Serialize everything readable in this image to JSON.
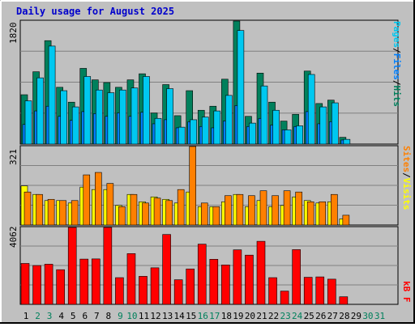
{
  "title": "Daily usage for August 2025",
  "colors": {
    "background": "#c0c0c0",
    "plot_background": "#c0c0c0",
    "title": "#0000cc",
    "hits": "#00805c",
    "files": "#0080ff",
    "pages": "#00c8f0",
    "visits": "#ffff00",
    "sites": "#ff8000",
    "kbytes": "#ff0000",
    "grid": "#808080",
    "day_weekday": "#000000",
    "day_weekend": "#00805c"
  },
  "chart_data": [
    {
      "type": "bar",
      "name": "hits-files-pages",
      "categories": [
        "1",
        "2",
        "3",
        "4",
        "5",
        "6",
        "7",
        "8",
        "9",
        "10",
        "11",
        "12",
        "13",
        "14",
        "15",
        "16",
        "17",
        "18",
        "19",
        "20",
        "21",
        "22",
        "23",
        "24",
        "25",
        "26",
        "27",
        "28",
        "29",
        "30",
        "31"
      ],
      "ymax_label": "1820",
      "ylim": [
        0,
        1820
      ],
      "legend_labels": {
        "pages": "Pages",
        "sep1": "/",
        "files": "Files",
        "sep2": "/",
        "hits": "Hits"
      },
      "series": [
        {
          "name": "Hits",
          "values": [
            730,
            1070,
            1530,
            840,
            620,
            1120,
            950,
            910,
            840,
            950,
            1040,
            460,
            880,
            420,
            790,
            500,
            560,
            960,
            1820,
            410,
            1050,
            620,
            340,
            440,
            1080,
            600,
            650,
            100,
            0,
            0,
            0
          ]
        },
        {
          "name": "Files",
          "values": [
            290,
            490,
            560,
            410,
            350,
            480,
            450,
            410,
            460,
            410,
            470,
            300,
            360,
            240,
            330,
            260,
            240,
            340,
            570,
            260,
            380,
            280,
            210,
            260,
            480,
            300,
            330,
            60,
            0,
            0,
            0
          ]
        },
        {
          "name": "Pages",
          "values": [
            640,
            980,
            1450,
            790,
            550,
            1000,
            800,
            760,
            800,
            830,
            1000,
            380,
            820,
            250,
            360,
            400,
            490,
            720,
            1680,
            310,
            860,
            500,
            210,
            270,
            1030,
            550,
            610,
            70,
            0,
            0,
            0
          ]
        }
      ]
    },
    {
      "type": "bar",
      "name": "visits-sites",
      "categories": [
        "1",
        "2",
        "3",
        "4",
        "5",
        "6",
        "7",
        "8",
        "9",
        "10",
        "11",
        "12",
        "13",
        "14",
        "15",
        "16",
        "17",
        "18",
        "19",
        "20",
        "21",
        "22",
        "23",
        "24",
        "25",
        "26",
        "27",
        "28",
        "29",
        "30",
        "31"
      ],
      "ymax_label": "321",
      "ylim": [
        0,
        321
      ],
      "legend_labels": {
        "sites": "Sites",
        "sep": "/",
        "visits": "Visits"
      },
      "series": [
        {
          "name": "Visits",
          "values": [
            160,
            125,
            100,
            100,
            90,
            155,
            145,
            145,
            80,
            125,
            95,
            115,
            105,
            90,
            135,
            75,
            75,
            95,
            125,
            75,
            100,
            75,
            80,
            115,
            100,
            90,
            95,
            25,
            0,
            0,
            0
          ]
        },
        {
          "name": "Sites",
          "values": [
            135,
            125,
            105,
            100,
            100,
            205,
            215,
            170,
            75,
            125,
            90,
            110,
            100,
            145,
            321,
            90,
            75,
            120,
            125,
            120,
            140,
            120,
            140,
            135,
            95,
            95,
            125,
            40,
            0,
            0,
            0
          ]
        }
      ]
    },
    {
      "type": "bar",
      "name": "kbytes",
      "categories": [
        "1",
        "2",
        "3",
        "4",
        "5",
        "6",
        "7",
        "8",
        "9",
        "10",
        "11",
        "12",
        "13",
        "14",
        "15",
        "16",
        "17",
        "18",
        "19",
        "20",
        "21",
        "22",
        "23",
        "24",
        "25",
        "26",
        "27",
        "28",
        "29",
        "30",
        "31"
      ],
      "ymax_label": "4062",
      "ylim": [
        0,
        4062
      ],
      "legend_labels": {
        "kbytes": "kB F"
      },
      "series": [
        {
          "name": "kB F",
          "values": [
            2160,
            2050,
            2120,
            1830,
            4062,
            2390,
            2400,
            4062,
            1410,
            2680,
            1480,
            1930,
            3690,
            1300,
            1870,
            3180,
            2380,
            2080,
            2880,
            2600,
            3330,
            1410,
            700,
            2890,
            1430,
            1450,
            1330,
            400,
            0,
            0,
            0
          ]
        }
      ]
    }
  ],
  "days": [
    {
      "label": "1",
      "weekend": false
    },
    {
      "label": "2",
      "weekend": true
    },
    {
      "label": "3",
      "weekend": true
    },
    {
      "label": "4",
      "weekend": false
    },
    {
      "label": "5",
      "weekend": false
    },
    {
      "label": "6",
      "weekend": false
    },
    {
      "label": "7",
      "weekend": false
    },
    {
      "label": "8",
      "weekend": false
    },
    {
      "label": "9",
      "weekend": true
    },
    {
      "label": "10",
      "weekend": true
    },
    {
      "label": "11",
      "weekend": false
    },
    {
      "label": "12",
      "weekend": false
    },
    {
      "label": "13",
      "weekend": false
    },
    {
      "label": "14",
      "weekend": false
    },
    {
      "label": "15",
      "weekend": false
    },
    {
      "label": "16",
      "weekend": true
    },
    {
      "label": "17",
      "weekend": true
    },
    {
      "label": "18",
      "weekend": false
    },
    {
      "label": "19",
      "weekend": false
    },
    {
      "label": "20",
      "weekend": false
    },
    {
      "label": "21",
      "weekend": false
    },
    {
      "label": "22",
      "weekend": false
    },
    {
      "label": "23",
      "weekend": true
    },
    {
      "label": "24",
      "weekend": true
    },
    {
      "label": "25",
      "weekend": false
    },
    {
      "label": "26",
      "weekend": false
    },
    {
      "label": "27",
      "weekend": false
    },
    {
      "label": "28",
      "weekend": false
    },
    {
      "label": "29",
      "weekend": false
    },
    {
      "label": "30",
      "weekend": true
    },
    {
      "label": "31",
      "weekend": true
    }
  ]
}
